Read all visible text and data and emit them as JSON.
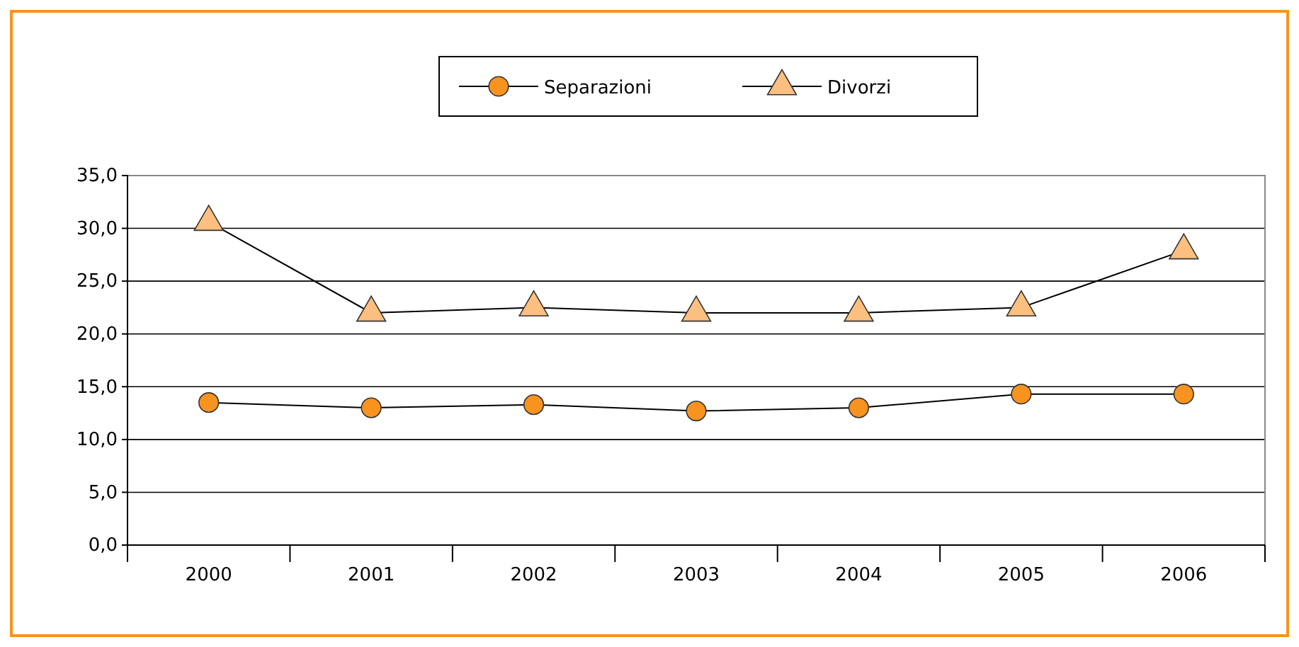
{
  "chart_data": {
    "type": "line",
    "categories": [
      "2000",
      "2001",
      "2002",
      "2003",
      "2004",
      "2005",
      "2006"
    ],
    "series": [
      {
        "name": "Separazioni",
        "color": "#f7931e",
        "marker": "circle",
        "values": [
          13.5,
          13.0,
          13.3,
          12.7,
          13.0,
          14.3,
          14.3
        ]
      },
      {
        "name": "Divorzi",
        "color": "#fbbf80",
        "marker": "triangle",
        "values": [
          30.6,
          22.0,
          22.5,
          22.0,
          22.0,
          22.5,
          27.9
        ]
      }
    ],
    "ylim": [
      0,
      35
    ],
    "yticks": [
      {
        "value": 0,
        "label": "0,0"
      },
      {
        "value": 5,
        "label": "5,0"
      },
      {
        "value": 10,
        "label": "10,0"
      },
      {
        "value": 15,
        "label": "15,0"
      },
      {
        "value": 20,
        "label": "20,0"
      },
      {
        "value": 25,
        "label": "25,0"
      },
      {
        "value": 30,
        "label": "30,0"
      },
      {
        "value": 35,
        "label": "35,0"
      }
    ],
    "grid": "y",
    "legend": "top",
    "line_style": "solid"
  }
}
